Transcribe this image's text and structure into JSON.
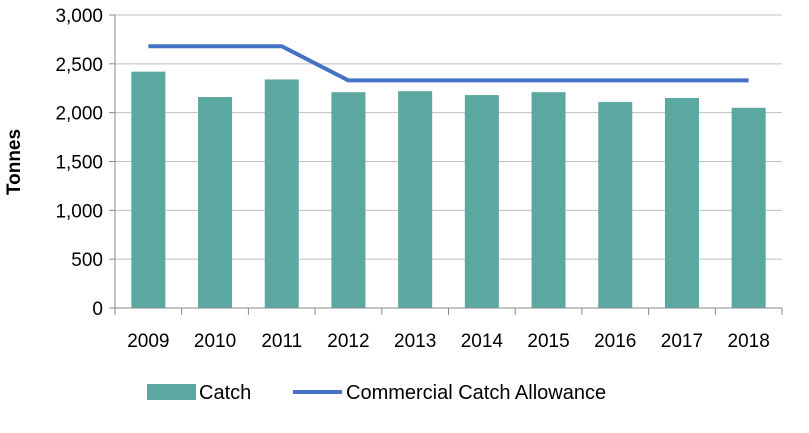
{
  "chart_data": {
    "type": "bar",
    "title": "",
    "xlabel": "",
    "ylabel": "Tonnes",
    "ylim": [
      0,
      3000
    ],
    "yticks": [
      0,
      500,
      1000,
      1500,
      2000,
      2500,
      3000
    ],
    "ytick_labels": [
      "0",
      "500",
      "1,000",
      "1,500",
      "2,000",
      "2,500",
      "3,000"
    ],
    "categories": [
      "2009",
      "2010",
      "2011",
      "2012",
      "2013",
      "2014",
      "2015",
      "2016",
      "2017",
      "2018"
    ],
    "grid": "horizontal",
    "legend_position": "bottom",
    "series": [
      {
        "name": "Catch",
        "kind": "bar",
        "color": "#5aa8a0",
        "values": [
          2420,
          2160,
          2340,
          2210,
          2220,
          2180,
          2210,
          2110,
          2150,
          2050
        ]
      },
      {
        "name": "Commercial Catch Allowance",
        "kind": "line",
        "color": "#4472c4",
        "values": [
          2680,
          2680,
          2680,
          2330,
          2330,
          2330,
          2330,
          2330,
          2330,
          2330
        ]
      }
    ]
  }
}
